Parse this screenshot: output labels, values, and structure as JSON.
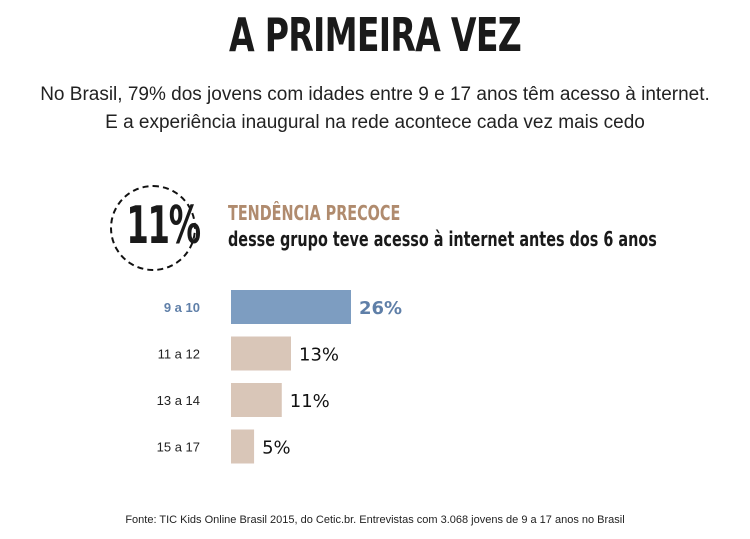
{
  "header": {
    "title": "A PRIMEIRA VEZ",
    "subtitle_line1": "No Brasil, 79% dos jovens com idades entre 9 e 17 anos têm acesso à internet.",
    "subtitle_line2": "E a experiência inaugural na rede acontece cada vez mais cedo"
  },
  "highlight": {
    "value": "11%",
    "heading": "TENDÊNCIA PRECOCE",
    "text": "desse grupo teve acesso à internet antes dos 6 anos"
  },
  "chart_data": {
    "type": "bar",
    "orientation": "horizontal",
    "categories": [
      "9 a 10",
      "11 a 12",
      "13 a 14",
      "15 a 17"
    ],
    "values": [
      26,
      13,
      11,
      5
    ],
    "value_labels": [
      "26%",
      "13%",
      "11%",
      "5%"
    ],
    "highlight_index": 0,
    "colors": {
      "highlight": "#7d9dc1",
      "default": "#d9c6b8",
      "highlight_text": "#5f7fa8"
    }
  },
  "footer": {
    "source": "Fonte: TIC Kids Online Brasil 2015, do Cetic.br. Entrevistas com 3.068 jovens de 9 a 17 anos no Brasil"
  }
}
